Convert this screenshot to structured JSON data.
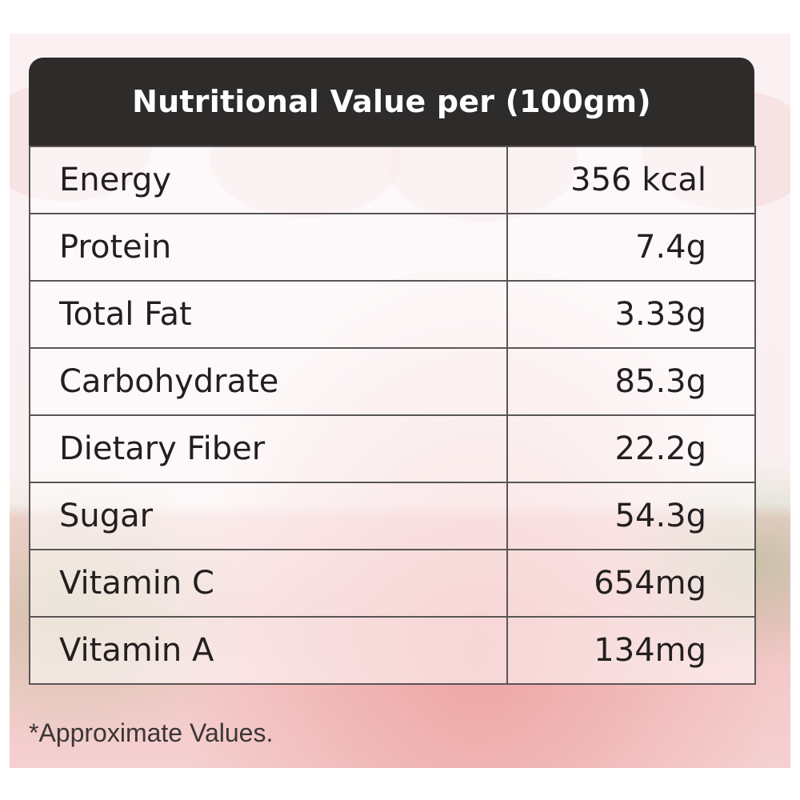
{
  "table": {
    "title": "Nutritional Value per (100gm)",
    "rows": [
      {
        "nutrient": "Energy",
        "value": "356 kcal"
      },
      {
        "nutrient": "Protein",
        "value": "7.4g"
      },
      {
        "nutrient": "Total Fat",
        "value": "3.33g"
      },
      {
        "nutrient": "Carbohydrate",
        "value": "85.3g"
      },
      {
        "nutrient": "Dietary Fiber",
        "value": "22.2g"
      },
      {
        "nutrient": "Sugar",
        "value": "54.3g"
      },
      {
        "nutrient": "Vitamin C",
        "value": "654mg"
      },
      {
        "nutrient": "Vitamin A",
        "value": "134mg"
      }
    ]
  },
  "footnote": "*Approximate Values.",
  "colors": {
    "header_bg": "#2e2b2b",
    "header_text": "#ffffff",
    "border": "#5a5555",
    "background_tint": "#f3c6c6"
  }
}
